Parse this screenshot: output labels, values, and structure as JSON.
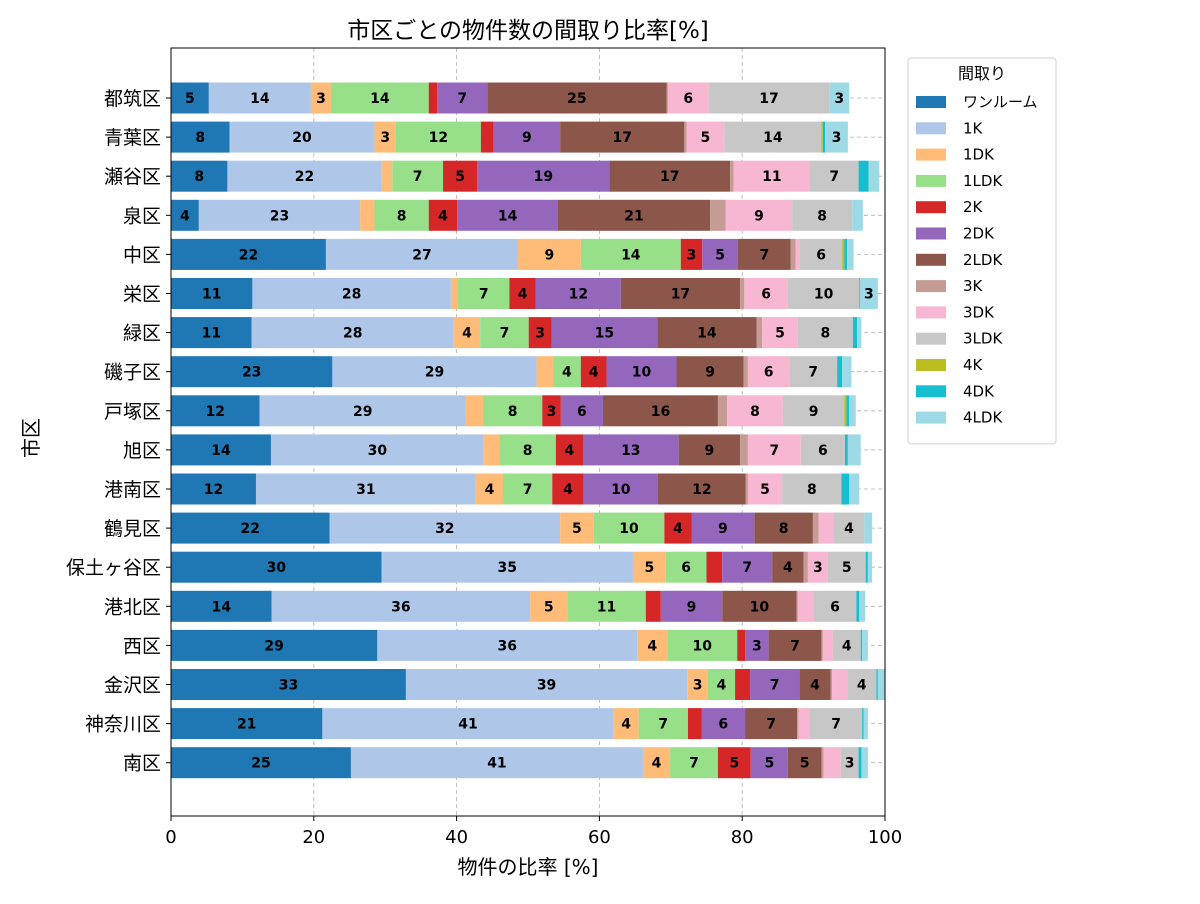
{
  "chart_data": {
    "type": "bar",
    "orientation": "horizontal",
    "stacked": true,
    "title": "市区ごとの物件数の間取り比率[%]",
    "xlabel": "物件の比率 [%]",
    "ylabel": "市区",
    "xlim": [
      0,
      100
    ],
    "xticks": [
      "0",
      "20",
      "40",
      "60",
      "80",
      "100"
    ],
    "grid": true,
    "legend_title": "間取り",
    "legend_position": "outside-top-right",
    "categories": [
      "都筑区",
      "青葉区",
      "瀬谷区",
      "泉区",
      "中区",
      "栄区",
      "緑区",
      "磯子区",
      "戸塚区",
      "旭区",
      "港南区",
      "鶴見区",
      "保土ヶ谷区",
      "港北区",
      "西区",
      "金沢区",
      "神奈川区",
      "南区"
    ],
    "series": [
      {
        "name": "ワンルーム",
        "color": "#1f77b4",
        "values": [
          5.3,
          8.2,
          7.9,
          3.9,
          21.7,
          11.4,
          11.3,
          22.6,
          12.4,
          14.0,
          11.9,
          22.2,
          29.5,
          14.1,
          28.9,
          32.9,
          21.2,
          25.2
        ]
      },
      {
        "name": "1K",
        "color": "#aec7e8",
        "values": [
          14.3,
          20.3,
          21.6,
          22.6,
          26.9,
          27.8,
          28.3,
          28.6,
          28.9,
          29.8,
          30.8,
          32.3,
          35.2,
          36.2,
          36.4,
          39.4,
          40.8,
          40.9
        ]
      },
      {
        "name": "1DK",
        "color": "#ffbb78",
        "values": [
          2.8,
          3.0,
          1.5,
          2.0,
          8.8,
          1.0,
          3.7,
          2.3,
          2.4,
          2.2,
          3.8,
          4.7,
          4.6,
          5.2,
          4.2,
          2.9,
          3.5,
          3.8
        ]
      },
      {
        "name": "1LDK",
        "color": "#98df8a",
        "values": [
          13.7,
          11.9,
          7.1,
          7.6,
          14.0,
          7.2,
          6.8,
          3.9,
          8.3,
          7.9,
          6.9,
          9.9,
          5.7,
          11.0,
          9.8,
          3.8,
          6.9,
          6.7
        ]
      },
      {
        "name": "2K",
        "color": "#d62728",
        "values": [
          1.2,
          1.8,
          4.8,
          4.0,
          3.0,
          3.7,
          3.2,
          3.6,
          2.6,
          3.8,
          4.4,
          3.8,
          2.2,
          2.1,
          1.1,
          2.1,
          1.9,
          4.6
        ]
      },
      {
        "name": "2DK",
        "color": "#9467bd",
        "values": [
          7.0,
          9.3,
          18.5,
          14.1,
          5.0,
          11.9,
          14.8,
          9.8,
          5.9,
          13.4,
          10.4,
          8.8,
          7.0,
          8.6,
          3.3,
          6.9,
          6.1,
          5.2
        ]
      },
      {
        "name": "2LDK",
        "color": "#8c564b",
        "values": [
          25.1,
          17.4,
          16.9,
          21.3,
          7.4,
          16.7,
          13.9,
          9.4,
          16.1,
          8.6,
          12.3,
          8.2,
          4.4,
          10.4,
          7.4,
          4.4,
          7.3,
          4.7
        ]
      },
      {
        "name": "3K",
        "color": "#c49c94",
        "values": [
          0.2,
          0.3,
          0.5,
          2.2,
          0.7,
          0.6,
          0.8,
          0.6,
          1.3,
          1.1,
          0.3,
          0.8,
          0.6,
          0.2,
          0.2,
          0.2,
          0.2,
          0.3
        ]
      },
      {
        "name": "3DK",
        "color": "#f7b6d2",
        "values": [
          5.7,
          5.3,
          10.7,
          9.3,
          0.6,
          6.1,
          5.0,
          5.8,
          7.8,
          7.4,
          4.8,
          2.1,
          2.8,
          2.2,
          1.4,
          2.1,
          1.6,
          2.4
        ]
      },
      {
        "name": "3LDK",
        "color": "#c7c7c7",
        "values": [
          16.9,
          13.6,
          6.8,
          8.4,
          5.9,
          10.0,
          7.7,
          6.7,
          8.6,
          6.2,
          8.3,
          4.3,
          5.3,
          6.0,
          3.9,
          4.1,
          7.3,
          2.5
        ]
      },
      {
        "name": "4K",
        "color": "#bcbd22",
        "values": [
          0,
          0.2,
          0,
          0,
          0.3,
          0,
          0,
          0,
          0.3,
          0,
          0,
          0,
          0,
          0,
          0,
          0,
          0,
          0
        ]
      },
      {
        "name": "4DK",
        "color": "#17becf",
        "values": [
          0,
          0.3,
          1.4,
          0,
          0.4,
          0.1,
          0.6,
          0.7,
          0.4,
          0.4,
          1.1,
          0,
          0.3,
          0.4,
          0.2,
          0.2,
          0.2,
          0.4
        ]
      },
      {
        "name": "4LDK",
        "color": "#9edae5",
        "values": [
          2.8,
          3.2,
          1.5,
          1.5,
          0.9,
          2.5,
          0.6,
          1.3,
          0.9,
          1.8,
          1.4,
          1.1,
          0.6,
          0.8,
          0.8,
          1.0,
          0.6,
          0.9
        ]
      }
    ]
  }
}
